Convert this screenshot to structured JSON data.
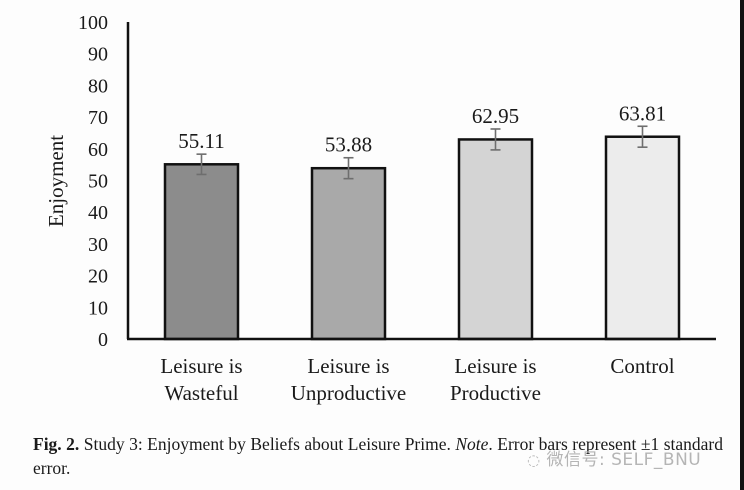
{
  "chart_data": {
    "type": "bar",
    "categories": [
      [
        "Leisure is",
        "Wasteful"
      ],
      [
        "Leisure is",
        "Unproductive"
      ],
      [
        "Leisure is",
        "Productive"
      ],
      [
        "Control"
      ]
    ],
    "values": [
      55.11,
      53.88,
      62.95,
      63.81
    ],
    "value_labels": [
      "55.11",
      "53.88",
      "62.95",
      "63.81"
    ],
    "error_bars": [
      3.2,
      3.3,
      3.3,
      3.3
    ],
    "bar_colors": [
      "#8c8c8c",
      "#a9a9a9",
      "#d4d4d4",
      "#ececec"
    ],
    "title": "",
    "xlabel": "",
    "ylabel": "Enjoyment",
    "ylim": [
      0,
      100
    ],
    "yticks": [
      "0",
      "10",
      "20",
      "30",
      "40",
      "50",
      "60",
      "70",
      "80",
      "90",
      "100"
    ],
    "grid": false,
    "legend": "none"
  },
  "caption": {
    "fig_label": "Fig. 2.",
    "text_before_note": " Study 3: Enjoyment by Beliefs about Leisure Prime. ",
    "note_label": "Note",
    "text_after_note": ". Error bars represent ±1 standard error."
  },
  "watermark": "微信号: SELF_BNU"
}
